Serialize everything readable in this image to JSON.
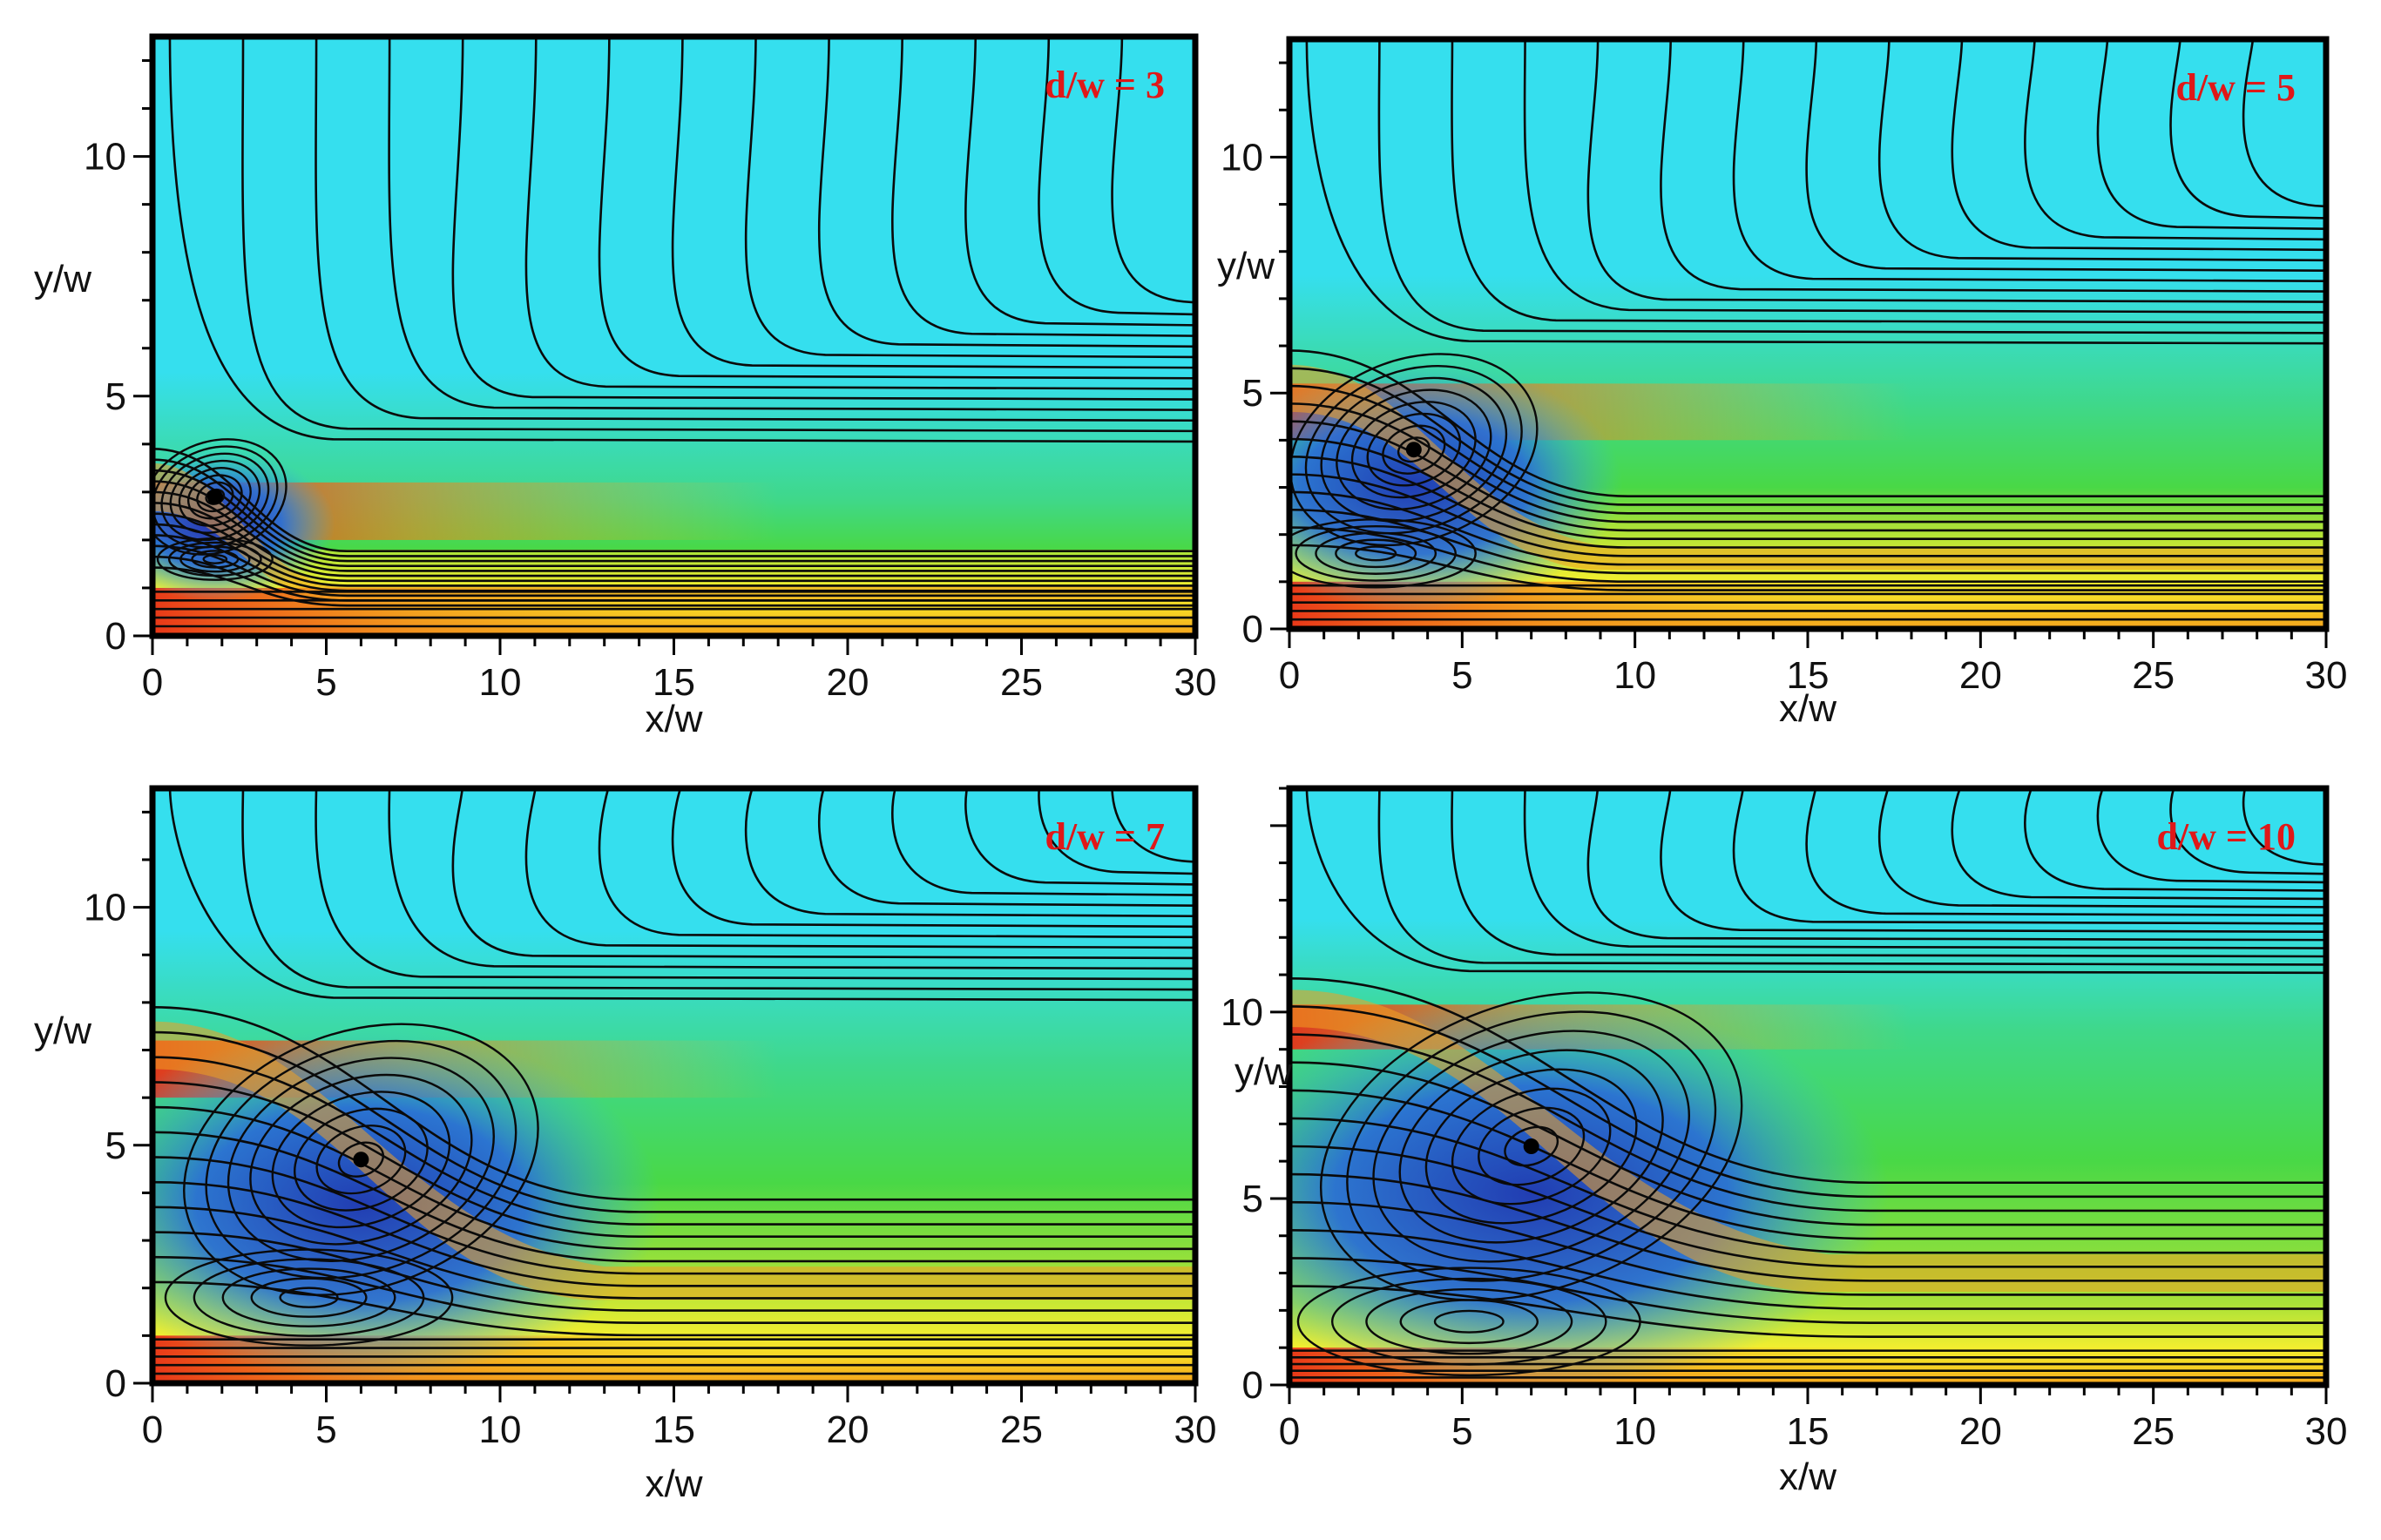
{
  "chart_data": [
    {
      "type": "heatmap",
      "subtype": "streamline contour",
      "annotation": "d/w = 3",
      "xlabel": "x/w",
      "ylabel": "y/w",
      "xlim": [
        0,
        30
      ],
      "ylim": [
        0,
        12.5
      ],
      "x_ticks": [
        "0",
        "5",
        "10",
        "15",
        "20",
        "25",
        "30"
      ],
      "y_ticks": [
        "0",
        "5",
        "10"
      ],
      "step_height": 3,
      "primary_vortex_center": [
        1.8,
        2.9
      ],
      "secondary_vortex_center": [
        1.8,
        1.6
      ],
      "reattachment_x": 4
    },
    {
      "type": "heatmap",
      "subtype": "streamline contour",
      "annotation": "d/w = 5",
      "xlabel": "x/w",
      "ylabel": "y/w",
      "xlim": [
        0,
        30
      ],
      "ylim": [
        0,
        12.5
      ],
      "x_ticks": [
        "0",
        "5",
        "10",
        "15",
        "20",
        "25",
        "30"
      ],
      "y_ticks": [
        "0",
        "5",
        "10"
      ],
      "step_height": 5,
      "primary_vortex_center": [
        3.6,
        3.8
      ],
      "secondary_vortex_center": [
        2.5,
        1.6
      ],
      "reattachment_x": 7
    },
    {
      "type": "heatmap",
      "subtype": "streamline contour",
      "annotation": "d/w = 7",
      "xlabel": "x/w",
      "ylabel": "y/w",
      "xlim": [
        0,
        30
      ],
      "ylim": [
        0,
        12.5
      ],
      "x_ticks": [
        "0",
        "5",
        "10",
        "15",
        "20",
        "25",
        "30"
      ],
      "y_ticks": [
        "0",
        "5",
        "10"
      ],
      "step_height": 7,
      "primary_vortex_center": [
        6,
        4.7
      ],
      "secondary_vortex_center": [
        4.5,
        1.8
      ],
      "reattachment_x": 10
    },
    {
      "type": "heatmap",
      "subtype": "streamline contour",
      "annotation": "d/w = 10",
      "xlabel": "x/w",
      "ylabel": "y/w",
      "xlim": [
        0,
        30
      ],
      "ylim": [
        0,
        16
      ],
      "x_ticks": [
        "0",
        "5",
        "10",
        "15",
        "20",
        "25",
        "30"
      ],
      "y_ticks": [
        "0",
        "5",
        "10"
      ],
      "step_height": 10,
      "primary_vortex_center": [
        7,
        6.4
      ],
      "secondary_vortex_center": [
        5.2,
        1.7
      ],
      "reattachment_x": 12
    }
  ],
  "colors": {
    "background_fluid": "#35dfee",
    "shear_layer": "#49d846",
    "jet_core": "#f2ee30",
    "high_velocity": "#e83118",
    "recirculation": "#1e35b8",
    "annotation": "#e01818"
  }
}
